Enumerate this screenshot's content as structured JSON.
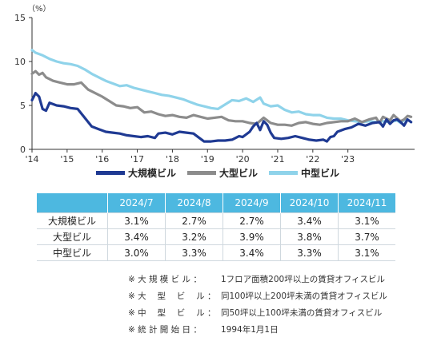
{
  "chart_data": {
    "type": "line",
    "unit_label": "（%）",
    "yticks": [
      "0",
      "5",
      "10",
      "15"
    ],
    "ylim": [
      0,
      15
    ],
    "xlim": [
      2014.0,
      2024.9
    ],
    "xticks": [
      {
        "label": "'14",
        "x": 2014
      },
      {
        "label": "'15",
        "x": 2015
      },
      {
        "label": "'16",
        "x": 2016
      },
      {
        "label": "'17",
        "x": 2017
      },
      {
        "label": "'18",
        "x": 2018
      },
      {
        "label": "'19",
        "x": 2019
      },
      {
        "label": "'20",
        "x": 2020
      },
      {
        "label": "'21",
        "x": 2021
      },
      {
        "label": "'22",
        "x": 2022
      },
      {
        "label": "'23",
        "x": 2023
      }
    ],
    "series": [
      {
        "name": "大規模ビル",
        "color": "#1f3a93",
        "points": [
          [
            2014.0,
            5.6
          ],
          [
            2014.1,
            6.4
          ],
          [
            2014.2,
            6.0
          ],
          [
            2014.3,
            4.6
          ],
          [
            2014.4,
            4.4
          ],
          [
            2014.5,
            5.3
          ],
          [
            2014.7,
            5.0
          ],
          [
            2014.9,
            4.9
          ],
          [
            2015.1,
            4.7
          ],
          [
            2015.3,
            4.6
          ],
          [
            2015.5,
            3.6
          ],
          [
            2015.7,
            2.6
          ],
          [
            2015.9,
            2.3
          ],
          [
            2016.1,
            2.0
          ],
          [
            2016.3,
            1.9
          ],
          [
            2016.5,
            1.8
          ],
          [
            2016.7,
            1.6
          ],
          [
            2016.9,
            1.5
          ],
          [
            2017.1,
            1.4
          ],
          [
            2017.3,
            1.5
          ],
          [
            2017.5,
            1.3
          ],
          [
            2017.6,
            1.8
          ],
          [
            2017.8,
            1.9
          ],
          [
            2018.0,
            1.7
          ],
          [
            2018.2,
            2.0
          ],
          [
            2018.4,
            1.9
          ],
          [
            2018.6,
            1.8
          ],
          [
            2018.8,
            1.2
          ],
          [
            2018.9,
            0.9
          ],
          [
            2019.1,
            0.9
          ],
          [
            2019.3,
            1.0
          ],
          [
            2019.5,
            1.0
          ],
          [
            2019.7,
            1.1
          ],
          [
            2019.9,
            1.5
          ],
          [
            2020.0,
            1.4
          ],
          [
            2020.2,
            2.0
          ],
          [
            2020.3,
            2.6
          ],
          [
            2020.4,
            3.0
          ],
          [
            2020.5,
            2.2
          ],
          [
            2020.6,
            3.2
          ],
          [
            2020.7,
            2.8
          ],
          [
            2020.8,
            1.9
          ],
          [
            2020.9,
            1.3
          ],
          [
            2021.1,
            1.2
          ],
          [
            2021.3,
            1.3
          ],
          [
            2021.5,
            1.5
          ],
          [
            2021.7,
            1.3
          ],
          [
            2021.9,
            1.1
          ],
          [
            2022.1,
            1.0
          ],
          [
            2022.3,
            1.1
          ],
          [
            2022.4,
            0.9
          ],
          [
            2022.5,
            1.4
          ],
          [
            2022.6,
            1.5
          ],
          [
            2022.7,
            2.0
          ],
          [
            2022.9,
            2.3
          ],
          [
            2023.1,
            2.5
          ],
          [
            2023.3,
            2.9
          ],
          [
            2023.5,
            2.7
          ],
          [
            2023.7,
            3.0
          ],
          [
            2023.9,
            3.1
          ],
          [
            2024.0,
            2.6
          ],
          [
            2024.1,
            3.4
          ],
          [
            2024.2,
            2.9
          ],
          [
            2024.3,
            3.3
          ],
          [
            2024.4,
            3.4
          ],
          [
            2024.5,
            3.1
          ],
          [
            2024.6,
            2.7
          ],
          [
            2024.7,
            3.4
          ],
          [
            2024.8,
            3.1
          ]
        ]
      },
      {
        "name": "大型ビル",
        "color": "#8c8c8c",
        "points": [
          [
            2014.0,
            8.6
          ],
          [
            2014.1,
            8.9
          ],
          [
            2014.2,
            8.5
          ],
          [
            2014.3,
            8.7
          ],
          [
            2014.4,
            8.2
          ],
          [
            2014.6,
            7.8
          ],
          [
            2014.8,
            7.6
          ],
          [
            2015.0,
            7.4
          ],
          [
            2015.2,
            7.4
          ],
          [
            2015.4,
            7.6
          ],
          [
            2015.6,
            6.8
          ],
          [
            2015.8,
            6.4
          ],
          [
            2016.0,
            6.0
          ],
          [
            2016.2,
            5.5
          ],
          [
            2016.4,
            5.0
          ],
          [
            2016.6,
            4.9
          ],
          [
            2016.8,
            4.7
          ],
          [
            2017.0,
            4.8
          ],
          [
            2017.2,
            4.2
          ],
          [
            2017.4,
            4.3
          ],
          [
            2017.6,
            4.0
          ],
          [
            2017.8,
            3.8
          ],
          [
            2018.0,
            3.9
          ],
          [
            2018.2,
            3.7
          ],
          [
            2018.4,
            3.6
          ],
          [
            2018.6,
            3.9
          ],
          [
            2018.8,
            3.7
          ],
          [
            2019.0,
            3.5
          ],
          [
            2019.2,
            3.6
          ],
          [
            2019.4,
            3.7
          ],
          [
            2019.6,
            3.3
          ],
          [
            2019.8,
            3.2
          ],
          [
            2020.0,
            3.2
          ],
          [
            2020.2,
            3.0
          ],
          [
            2020.4,
            2.9
          ],
          [
            2020.6,
            3.6
          ],
          [
            2020.8,
            3.0
          ],
          [
            2021.0,
            2.8
          ],
          [
            2021.2,
            2.8
          ],
          [
            2021.4,
            2.7
          ],
          [
            2021.6,
            3.0
          ],
          [
            2021.8,
            3.1
          ],
          [
            2022.0,
            2.9
          ],
          [
            2022.2,
            2.8
          ],
          [
            2022.4,
            3.0
          ],
          [
            2022.6,
            3.1
          ],
          [
            2022.8,
            3.2
          ],
          [
            2023.0,
            3.2
          ],
          [
            2023.2,
            3.5
          ],
          [
            2023.4,
            3.1
          ],
          [
            2023.6,
            3.4
          ],
          [
            2023.8,
            3.6
          ],
          [
            2023.9,
            3.0
          ],
          [
            2024.0,
            3.7
          ],
          [
            2024.2,
            3.3
          ],
          [
            2024.3,
            3.9
          ],
          [
            2024.5,
            3.2
          ],
          [
            2024.6,
            3.4
          ],
          [
            2024.7,
            3.8
          ],
          [
            2024.8,
            3.7
          ]
        ]
      },
      {
        "name": "中型ビル",
        "color": "#8fd3ea",
        "points": [
          [
            2014.0,
            11.3
          ],
          [
            2014.1,
            11.0
          ],
          [
            2014.3,
            10.7
          ],
          [
            2014.5,
            10.3
          ],
          [
            2014.7,
            10.0
          ],
          [
            2014.9,
            9.8
          ],
          [
            2015.1,
            9.7
          ],
          [
            2015.3,
            9.5
          ],
          [
            2015.5,
            9.1
          ],
          [
            2015.7,
            8.6
          ],
          [
            2015.9,
            8.2
          ],
          [
            2016.1,
            7.8
          ],
          [
            2016.3,
            7.5
          ],
          [
            2016.5,
            7.2
          ],
          [
            2016.7,
            7.3
          ],
          [
            2016.9,
            7.0
          ],
          [
            2017.1,
            6.8
          ],
          [
            2017.3,
            6.6
          ],
          [
            2017.5,
            6.4
          ],
          [
            2017.7,
            6.2
          ],
          [
            2017.9,
            6.1
          ],
          [
            2018.1,
            5.9
          ],
          [
            2018.3,
            5.7
          ],
          [
            2018.5,
            5.4
          ],
          [
            2018.7,
            5.1
          ],
          [
            2018.9,
            4.9
          ],
          [
            2019.1,
            4.7
          ],
          [
            2019.3,
            4.6
          ],
          [
            2019.5,
            5.1
          ],
          [
            2019.7,
            5.6
          ],
          [
            2019.9,
            5.5
          ],
          [
            2020.1,
            5.8
          ],
          [
            2020.3,
            5.4
          ],
          [
            2020.5,
            5.9
          ],
          [
            2020.6,
            5.2
          ],
          [
            2020.8,
            4.9
          ],
          [
            2021.0,
            5.0
          ],
          [
            2021.2,
            4.5
          ],
          [
            2021.4,
            4.2
          ],
          [
            2021.6,
            4.3
          ],
          [
            2021.8,
            4.0
          ],
          [
            2022.0,
            3.9
          ],
          [
            2022.2,
            3.9
          ],
          [
            2022.4,
            3.6
          ],
          [
            2022.6,
            3.5
          ],
          [
            2022.8,
            3.5
          ],
          [
            2023.0,
            3.3
          ],
          [
            2023.2,
            3.2
          ],
          [
            2023.4,
            3.1
          ],
          [
            2023.6,
            3.2
          ],
          [
            2023.8,
            3.1
          ],
          [
            2024.0,
            3.2
          ],
          [
            2024.2,
            3.1
          ],
          [
            2024.4,
            3.3
          ],
          [
            2024.5,
            3.0
          ],
          [
            2024.6,
            3.3
          ],
          [
            2024.7,
            3.4
          ],
          [
            2024.8,
            3.1
          ]
        ]
      }
    ]
  },
  "table": {
    "headers": [
      "2024/7",
      "2024/8",
      "2024/9",
      "2024/10",
      "2024/11"
    ],
    "rows": [
      {
        "label": "大規模ビル",
        "values": [
          "3.1%",
          "2.7%",
          "2.7%",
          "3.4%",
          "3.1%"
        ]
      },
      {
        "label": "大型ビル",
        "values": [
          "3.4%",
          "3.2%",
          "3.9%",
          "3.8%",
          "3.7%"
        ]
      },
      {
        "label": "中型ビル",
        "values": [
          "3.0%",
          "3.3%",
          "3.4%",
          "3.3%",
          "3.1%"
        ]
      }
    ]
  },
  "notes": [
    {
      "key": "※ 大 規 模 ビ ル ：",
      "text": "1フロア面積200坪以上の賃貸オフィスビル"
    },
    {
      "key": "※ 大　 型　 ビ　 ル ：",
      "text": "同100坪以上200坪未満の賃貸オフィスビル"
    },
    {
      "key": "※ 中　 型　 ビ　 ル ：",
      "text": "同50坪以上100坪未満の賃貸オフィスビル"
    },
    {
      "key": "※ 統 計 開 始 日 ：",
      "text": "1994年1月1日"
    }
  ]
}
